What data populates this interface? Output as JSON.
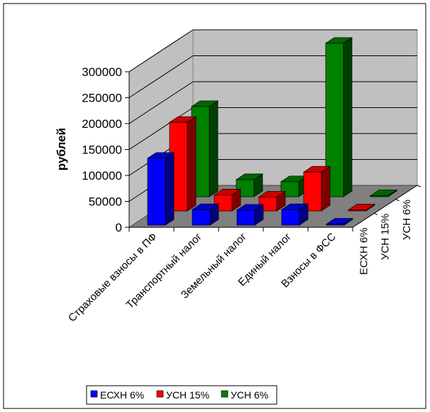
{
  "chart_data": {
    "type": "bar",
    "subtype": "3d-column",
    "title": "",
    "ylabel": "рублей",
    "xlabel": "",
    "ylim": [
      0,
      300000
    ],
    "yticks": [
      "0",
      "50000",
      "100000",
      "150000",
      "200000",
      "250000",
      "300000"
    ],
    "categories": [
      "Страховые взносы в ПФ",
      "Транспортный налог",
      "Земельный налог",
      "Единый налог",
      "Взносы в ФСС"
    ],
    "series": [
      {
        "name": "ЕСХН 6%",
        "color": "#0000FF",
        "top": "#0000CC",
        "side": "#000080",
        "values": [
          129000,
          30000,
          29000,
          30000,
          2000
        ]
      },
      {
        "name": "УСН 15%",
        "color": "#FF0000",
        "top": "#CC0000",
        "side": "#800000",
        "values": [
          171000,
          31000,
          27000,
          75000,
          2000
        ]
      },
      {
        "name": "УСН 6%",
        "color": "#008000",
        "top": "#006600",
        "side": "#004000",
        "values": [
          174000,
          33000,
          29000,
          296000,
          2000
        ]
      }
    ],
    "grid": true,
    "legend_position": "bottom"
  }
}
